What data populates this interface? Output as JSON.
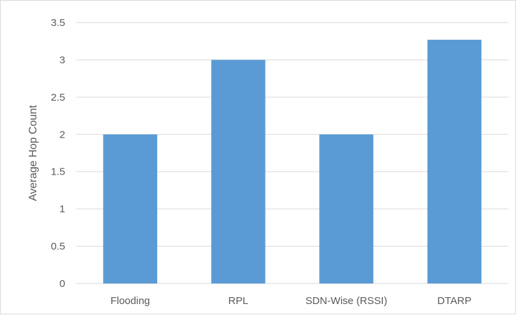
{
  "chart_data": {
    "type": "bar",
    "title": "",
    "xlabel": "",
    "ylabel": "Average Hop Count",
    "categories": [
      "Flooding",
      "RPL",
      "SDN-Wise (RSSI)",
      "DTARP"
    ],
    "values": [
      2,
      3,
      2,
      3.27
    ],
    "ylim": [
      0,
      3.5
    ],
    "yticks": [
      "0",
      "0.5",
      "1",
      "1.5",
      "2",
      "2.5",
      "3",
      "3.5"
    ],
    "grid": true,
    "legend": "none",
    "bar_color": "#5b9bd5",
    "grid_color": "#d9d9d9",
    "text_color": "#595959"
  }
}
